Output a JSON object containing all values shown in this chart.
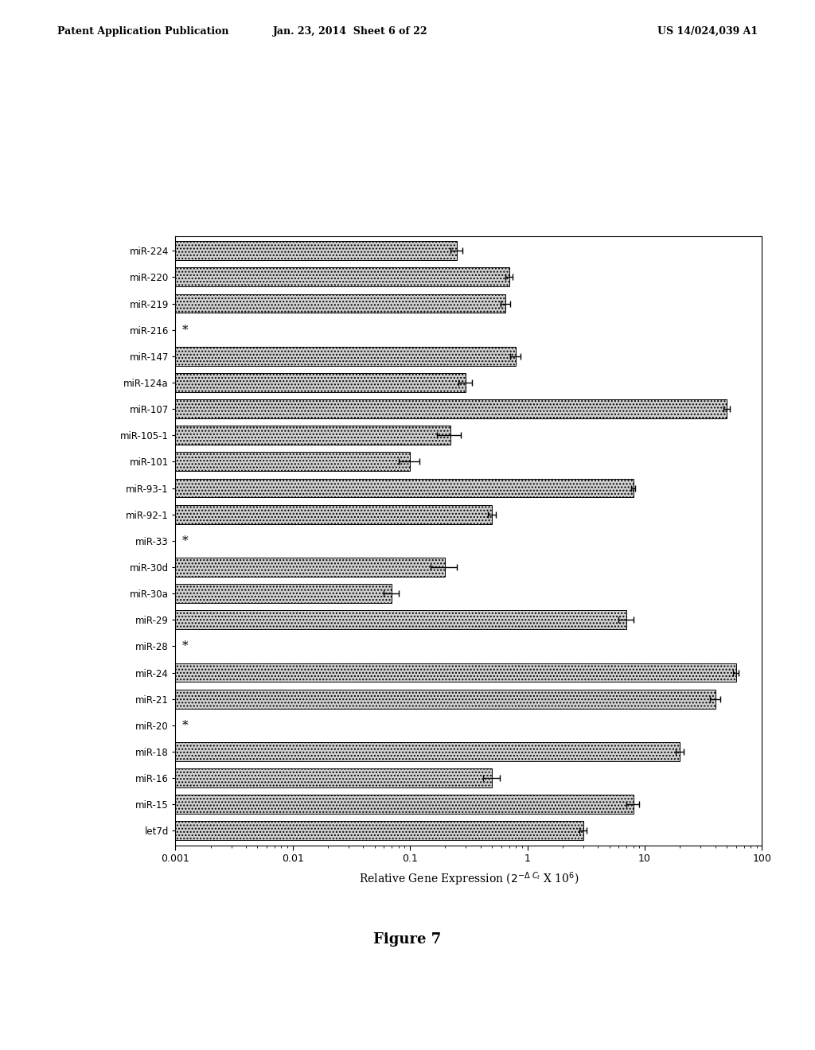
{
  "labels": [
    "miR-224",
    "miR-220",
    "miR-219",
    "miR-216",
    "miR-147",
    "miR-124a",
    "miR-107",
    "miR-105-1",
    "miR-101",
    "miR-93-1",
    "miR-92-1",
    "miR-33",
    "miR-30d",
    "miR-30a",
    "miR-29",
    "miR-28",
    "miR-24",
    "miR-21",
    "miR-20",
    "miR-18",
    "miR-16",
    "miR-15",
    "let7d"
  ],
  "values": [
    0.25,
    0.7,
    0.65,
    null,
    0.8,
    0.3,
    50.0,
    0.22,
    0.1,
    8.0,
    0.5,
    null,
    0.2,
    0.07,
    7.0,
    null,
    60.0,
    40.0,
    null,
    20.0,
    0.5,
    8.0,
    3.0
  ],
  "errors": [
    0.03,
    0.05,
    0.06,
    null,
    0.08,
    0.04,
    3.0,
    0.05,
    0.02,
    0.3,
    0.04,
    null,
    0.05,
    0.01,
    1.0,
    null,
    3.0,
    4.0,
    null,
    1.5,
    0.08,
    1.0,
    0.2
  ],
  "star_labels": [
    false,
    false,
    false,
    true,
    false,
    false,
    false,
    false,
    false,
    false,
    false,
    true,
    false,
    false,
    false,
    true,
    false,
    false,
    true,
    false,
    false,
    false,
    false
  ],
  "figure_caption": "Figure 7",
  "header_left": "Patent Application Publication",
  "header_mid": "Jan. 23, 2014  Sheet 6 of 22",
  "header_right": "US 14/024,039 A1",
  "bar_color": "#d0d0d0",
  "bar_hatch": "....",
  "bar_edgecolor": "#000000",
  "background_color": "#ffffff"
}
